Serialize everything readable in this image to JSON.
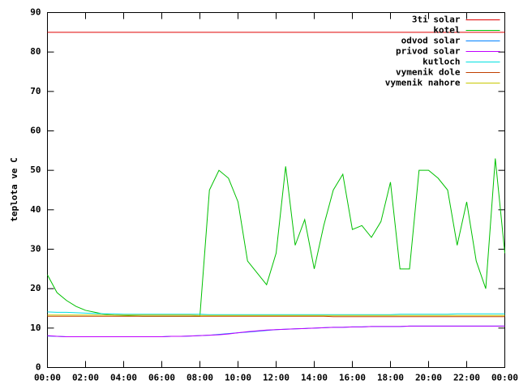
{
  "chart_data": {
    "type": "line",
    "y_label": "teplota ve C",
    "x": [
      0,
      0.5,
      1,
      1.5,
      2,
      2.5,
      3,
      3.5,
      4,
      4.5,
      5,
      5.5,
      6,
      6.5,
      7,
      7.5,
      8,
      8.5,
      9,
      9.5,
      10,
      10.5,
      11,
      11.5,
      12,
      12.5,
      13,
      13.5,
      14,
      14.5,
      15,
      15.5,
      16,
      16.5,
      17,
      17.5,
      18,
      18.5,
      19,
      19.5,
      20,
      20.5,
      21,
      21.5,
      22,
      22.5,
      23,
      23.5,
      24
    ],
    "xlim": [
      0,
      24
    ],
    "xticks": [
      {
        "value": 0,
        "label": "00:00"
      },
      {
        "value": 2,
        "label": "02:00"
      },
      {
        "value": 4,
        "label": "04:00"
      },
      {
        "value": 6,
        "label": "06:00"
      },
      {
        "value": 8,
        "label": "08:00"
      },
      {
        "value": 10,
        "label": "10:00"
      },
      {
        "value": 12,
        "label": "12:00"
      },
      {
        "value": 14,
        "label": "14:00"
      },
      {
        "value": 16,
        "label": "16:00"
      },
      {
        "value": 18,
        "label": "18:00"
      },
      {
        "value": 20,
        "label": "20:00"
      },
      {
        "value": 22,
        "label": "22:00"
      },
      {
        "value": 24,
        "label": "00:00"
      }
    ],
    "ylim": [
      0,
      90
    ],
    "yticks": [
      0,
      10,
      20,
      30,
      40,
      50,
      60,
      70,
      80,
      90
    ],
    "legend": "top-right",
    "series": [
      {
        "name": "3ti solar",
        "color": "#e00000",
        "values": [
          85,
          85,
          85,
          85,
          85,
          85,
          85,
          85,
          85,
          85,
          85,
          85,
          85,
          85,
          85,
          85,
          85,
          85,
          85,
          85,
          85,
          85,
          85,
          85,
          85,
          85,
          85,
          85,
          85,
          85,
          85,
          85,
          85,
          85,
          85,
          85,
          85,
          85,
          85,
          85,
          85,
          85,
          85,
          85,
          85,
          85,
          85,
          85,
          85
        ]
      },
      {
        "name": "kotel",
        "color": "#00c000",
        "values": [
          23.5,
          19,
          17,
          15.5,
          14.5,
          14,
          13.5,
          13.3,
          13.2,
          13.1,
          13,
          13,
          13,
          13,
          13,
          13,
          13,
          45,
          50,
          48,
          42,
          27,
          24,
          21,
          29,
          51,
          31,
          37.5,
          25,
          36,
          45,
          49,
          35,
          36,
          33,
          37,
          47,
          25,
          25,
          50,
          50,
          48,
          45,
          31,
          42,
          27,
          20,
          53,
          29
        ]
      },
      {
        "name": "odvod solar",
        "color": "#0080ff",
        "values": [
          8,
          7.9,
          7.8,
          7.8,
          7.8,
          7.8,
          7.8,
          7.8,
          7.8,
          7.8,
          7.8,
          7.8,
          7.8,
          7.9,
          7.9,
          8,
          8.1,
          8.2,
          8.4,
          8.6,
          8.8,
          9,
          9.2,
          9.4,
          9.6,
          9.7,
          9.8,
          9.9,
          10,
          10.1,
          10.2,
          10.2,
          10.3,
          10.3,
          10.4,
          10.4,
          10.4,
          10.4,
          10.5,
          10.5,
          10.5,
          10.5,
          10.5,
          10.5,
          10.5,
          10.5,
          10.5,
          10.5,
          10.5
        ]
      },
      {
        "name": "privod solar",
        "color": "#c000ff",
        "values": [
          8.1,
          7.9,
          7.8,
          7.8,
          7.8,
          7.8,
          7.8,
          7.8,
          7.8,
          7.8,
          7.8,
          7.8,
          7.8,
          7.9,
          7.9,
          8,
          8.1,
          8.2,
          8.3,
          8.5,
          8.8,
          9.1,
          9.3,
          9.5,
          9.6,
          9.7,
          9.8,
          9.9,
          10,
          10.1,
          10.2,
          10.2,
          10.3,
          10.3,
          10.4,
          10.4,
          10.4,
          10.4,
          10.5,
          10.5,
          10.5,
          10.5,
          10.5,
          10.5,
          10.5,
          10.5,
          10.5,
          10.5,
          10.5
        ]
      },
      {
        "name": "kutloch",
        "color": "#00e0e0",
        "values": [
          14.1,
          14,
          14,
          13.9,
          13.8,
          13.7,
          13.6,
          13.6,
          13.5,
          13.5,
          13.5,
          13.5,
          13.5,
          13.5,
          13.5,
          13.5,
          13.5,
          13.4,
          13.4,
          13.4,
          13.4,
          13.4,
          13.4,
          13.4,
          13.4,
          13.4,
          13.4,
          13.4,
          13.4,
          13.4,
          13.4,
          13.4,
          13.4,
          13.4,
          13.4,
          13.4,
          13.4,
          13.5,
          13.5,
          13.5,
          13.5,
          13.5,
          13.5,
          13.6,
          13.6,
          13.6,
          13.6,
          13.6,
          13.6
        ]
      },
      {
        "name": "vymenik dole",
        "color": "#c04000",
        "values": [
          13,
          13,
          13,
          13,
          13,
          13,
          13,
          13,
          13,
          13,
          13,
          13,
          13,
          13,
          13,
          13,
          13,
          13,
          13,
          13,
          13,
          13,
          13,
          13,
          13,
          13,
          13,
          13,
          13,
          13,
          12.9,
          12.9,
          12.9,
          12.9,
          12.9,
          12.9,
          12.9,
          12.9,
          12.9,
          12.9,
          12.9,
          12.9,
          12.9,
          12.9,
          12.9,
          12.9,
          12.9,
          12.9,
          12.9
        ]
      },
      {
        "name": "vymenik nahore",
        "color": "#c8c800",
        "values": [
          13.3,
          13.3,
          13.3,
          13.3,
          13.3,
          13.3,
          13.3,
          13.3,
          13.3,
          13.3,
          13.3,
          13.3,
          13.3,
          13.3,
          13.3,
          13.3,
          13.2,
          13.2,
          13.2,
          13.2,
          13.2,
          13.2,
          13.2,
          13.2,
          13.2,
          13.2,
          13.2,
          13.2,
          13.2,
          13.2,
          13.2,
          13.2,
          13.2,
          13.2,
          13.2,
          13.2,
          13.2,
          13.2,
          13.2,
          13.2,
          13.2,
          13.2,
          13.2,
          13.2,
          13.2,
          13.2,
          13.2,
          13.2,
          13.2
        ]
      }
    ]
  }
}
